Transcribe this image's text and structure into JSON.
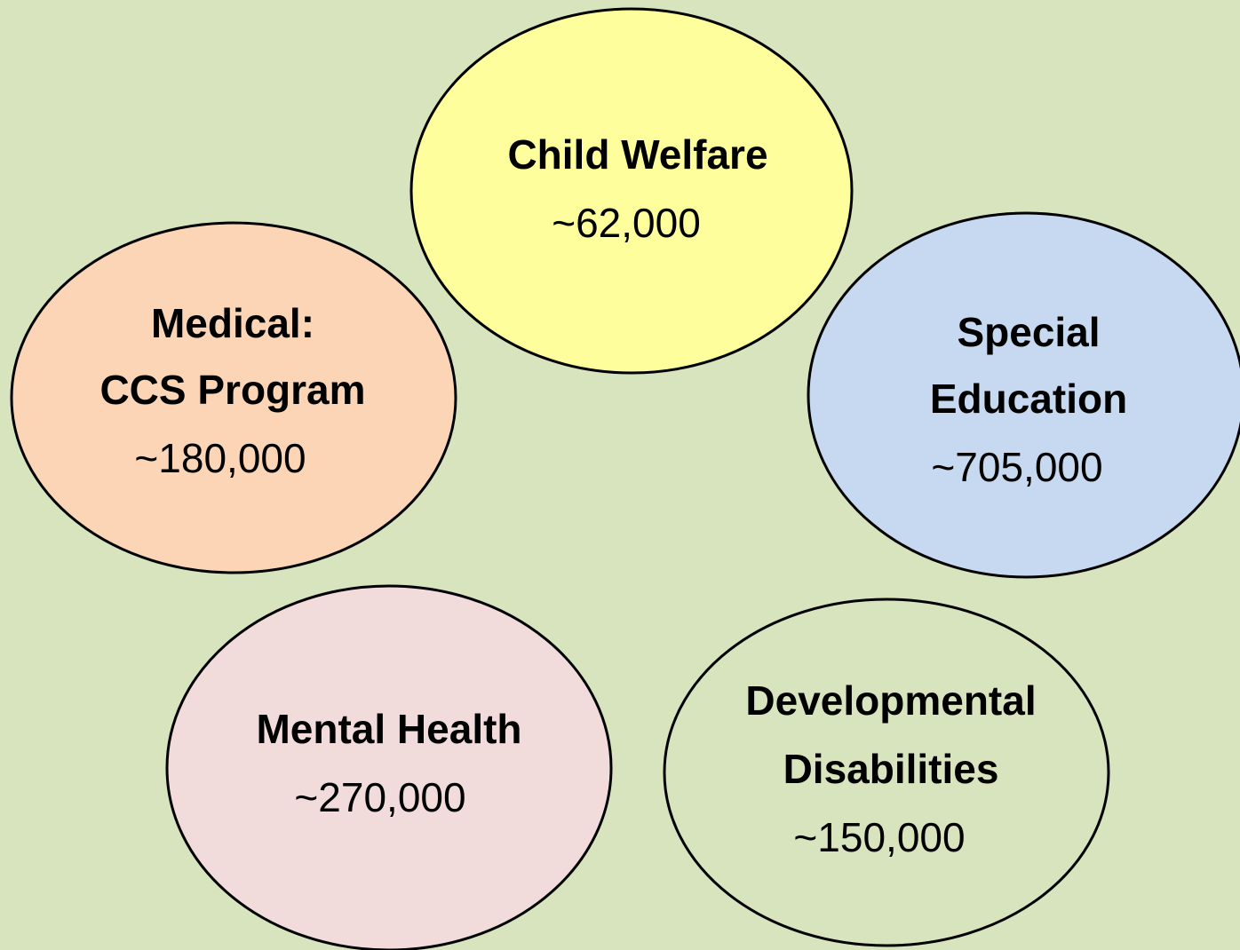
{
  "nodes": [
    {
      "lines": [
        "Child Welfare"
      ],
      "value": "~62,000"
    },
    {
      "lines": [
        "Medical:",
        "CCS Program"
      ],
      "value": "~180,000"
    },
    {
      "lines": [
        "Special",
        "Education"
      ],
      "value": "~705,000"
    },
    {
      "lines": [
        "Mental Health"
      ],
      "value": "~270,000"
    },
    {
      "lines": [
        "Developmental",
        "Disabilities"
      ],
      "value": "~150,000"
    }
  ]
}
